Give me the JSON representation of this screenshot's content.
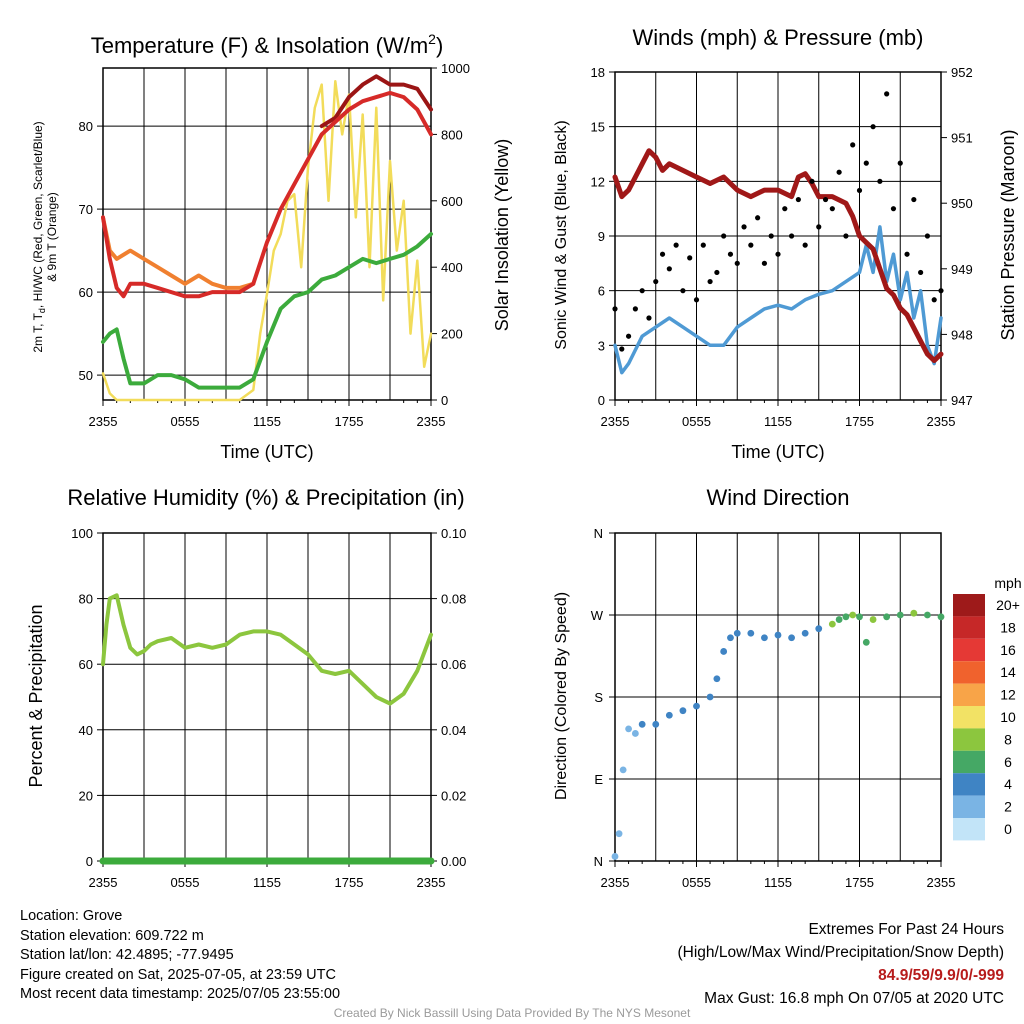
{
  "colors": {
    "temperature": "#d62a28",
    "dewpoint": "#3cab3c",
    "heatindex": "#9b1515",
    "temp_9m": "#f08030",
    "insolation": "#f2dc5a",
    "wind": "#4f9ad4",
    "gust": "#000000",
    "pressure": "#a01818",
    "humidity": "#8cc63e",
    "precip": "#3cab3c"
  },
  "charts": {
    "temperature": {
      "title_main": "Temperature (F) & Insolation (W/m",
      "title_sup": "2",
      "title_end": ")",
      "xlabel": "Time (UTC)",
      "ylabel_line1": "2m T, T",
      "ylabel_sub": "d",
      "ylabel_rest": ", HI/WC (Red, Green, Scarlet/Blue)",
      "ylabel_line2": "& 9m T (Orange)",
      "ylabel_right": "Solar Insolation (Yellow)"
    },
    "winds": {
      "title": "Winds (mph) & Pressure (mb)",
      "xlabel": "Time (UTC)",
      "ylabel_left": "Sonic Wind & Gust (Blue, Black)",
      "ylabel_right": "Station Pressure (Maroon)"
    },
    "humidity": {
      "title": "Relative Humidity (%) & Precipitation (in)",
      "ylabel_left": "Percent & Precipitation"
    },
    "direction": {
      "title": "Wind Direction",
      "ylabel_left": "Direction (Colored By Speed)",
      "legend_title": "mph"
    }
  },
  "chart_data": [
    {
      "id": "temperature",
      "type": "line",
      "x_ticks": [
        "2355",
        "0555",
        "1155",
        "1755",
        "2355"
      ],
      "xlim_hours": [
        0,
        24
      ],
      "ylim_left": [
        47,
        87
      ],
      "ylim_right": [
        0,
        1000
      ],
      "y_ticks_left": [
        50,
        60,
        70,
        80
      ],
      "y_ticks_right": [
        0,
        200,
        400,
        600,
        800,
        1000
      ],
      "series": [
        {
          "key": "temp_9m",
          "axis": "left",
          "x": [
            0,
            0.5,
            1,
            2,
            3,
            4,
            5,
            6,
            7,
            8,
            9,
            10,
            11
          ],
          "y": [
            69,
            65,
            64,
            65,
            64,
            63,
            62,
            61,
            62,
            61,
            60.5,
            60.5,
            61
          ]
        },
        {
          "key": "temperature",
          "axis": "left",
          "x": [
            0,
            0.5,
            1,
            1.5,
            2,
            3,
            4,
            5,
            6,
            7,
            8,
            9,
            10,
            11,
            12,
            13,
            14,
            15,
            16,
            17,
            18,
            19,
            20,
            21,
            22,
            23,
            24
          ],
          "y": [
            69,
            64,
            60.5,
            59.5,
            61,
            61,
            60.5,
            60,
            59.5,
            59.5,
            60,
            60,
            60,
            61,
            66,
            70,
            73,
            76,
            79,
            80.5,
            82,
            83,
            83.5,
            84,
            83.5,
            82,
            79
          ]
        },
        {
          "key": "heatindex",
          "axis": "left",
          "x": [
            16,
            17,
            18,
            19,
            20,
            21,
            22,
            23,
            24
          ],
          "y": [
            80,
            81,
            83.5,
            85,
            86,
            85,
            85,
            84.5,
            82
          ]
        },
        {
          "key": "dewpoint",
          "axis": "left",
          "x": [
            0,
            0.5,
            1,
            1.5,
            2,
            3,
            4,
            5,
            6,
            7,
            8,
            9,
            10,
            11,
            12,
            13,
            14,
            15,
            16,
            17,
            18,
            19,
            20,
            21,
            22,
            23,
            24
          ],
          "y": [
            54,
            55,
            55.5,
            52,
            49,
            49,
            50,
            50,
            49.5,
            48.5,
            48.5,
            48.5,
            48.5,
            49.5,
            54,
            58,
            59.5,
            60,
            61.5,
            62,
            63,
            64,
            63.5,
            64,
            64.5,
            65.5,
            67
          ]
        },
        {
          "key": "insolation",
          "axis": "right",
          "x": [
            0,
            0.5,
            1,
            2,
            4,
            6,
            8,
            9,
            10,
            11,
            11.5,
            12,
            12.5,
            13,
            13.5,
            14,
            14.5,
            15,
            15.5,
            16,
            16.5,
            17,
            17.5,
            18,
            18.5,
            19,
            19.5,
            20,
            20.5,
            21,
            21.5,
            22,
            22.5,
            23,
            23.5,
            24
          ],
          "y": [
            80,
            20,
            0,
            0,
            0,
            0,
            0,
            0,
            0,
            30,
            200,
            320,
            450,
            500,
            600,
            620,
            400,
            700,
            880,
            950,
            600,
            960,
            800,
            920,
            550,
            860,
            400,
            880,
            300,
            720,
            450,
            600,
            200,
            420,
            100,
            200
          ]
        }
      ]
    },
    {
      "id": "winds",
      "type": "line",
      "x_ticks": [
        "2355",
        "0555",
        "1155",
        "1755",
        "2355"
      ],
      "xlim_hours": [
        0,
        24
      ],
      "ylim_left": [
        0,
        18
      ],
      "ylim_right": [
        947,
        952
      ],
      "y_ticks_left": [
        0,
        3,
        6,
        9,
        12,
        15,
        18
      ],
      "y_ticks_right": [
        947,
        948,
        949,
        950,
        951,
        952
      ],
      "series": [
        {
          "key": "wind",
          "axis": "left",
          "x": [
            0,
            0.5,
            1,
            2,
            3,
            4,
            5,
            6,
            7,
            8,
            9,
            10,
            11,
            12,
            13,
            14,
            15,
            16,
            17,
            18,
            18.5,
            19,
            19.5,
            20,
            20.5,
            21,
            21.5,
            22,
            22.5,
            23,
            23.5,
            24
          ],
          "y": [
            3,
            1.5,
            2,
            3.5,
            4,
            4.5,
            4,
            3.5,
            3,
            3,
            4,
            4.5,
            5,
            5.2,
            5,
            5.5,
            5.8,
            6,
            6.5,
            7,
            8.5,
            7,
            9.5,
            6.5,
            8,
            5.5,
            7,
            4.5,
            6,
            3,
            2,
            4.5
          ]
        },
        {
          "key": "gust",
          "axis": "left",
          "x": [
            0,
            0.5,
            1,
            1.5,
            2,
            2.5,
            3,
            3.5,
            4,
            4.5,
            5,
            5.5,
            6,
            6.5,
            7,
            7.5,
            8,
            8.5,
            9,
            9.5,
            10,
            10.5,
            11,
            11.5,
            12,
            12.5,
            13,
            13.5,
            14,
            14.5,
            15,
            15.5,
            16,
            16.5,
            17,
            17.5,
            18,
            18.5,
            19,
            19.5,
            20,
            20.5,
            21,
            21.5,
            22,
            22.5,
            23,
            23.5,
            24
          ],
          "y": [
            5,
            2.8,
            3.5,
            5,
            6,
            4.5,
            6.5,
            8,
            7.2,
            8.5,
            6,
            7.8,
            5.5,
            8.5,
            6.5,
            7,
            9,
            8,
            7.5,
            9.5,
            8.5,
            10,
            7.5,
            9,
            8,
            10.5,
            9,
            11,
            8.5,
            12,
            9.5,
            11,
            10.5,
            12.5,
            9,
            14,
            11.5,
            13,
            15,
            12,
            16.8,
            10.5,
            13,
            8,
            11,
            7,
            9,
            5.5,
            6
          ]
        },
        {
          "key": "pressure",
          "axis": "right",
          "x": [
            0,
            0.5,
            1,
            1.5,
            2,
            2.5,
            3,
            3.5,
            4,
            5,
            6,
            7,
            8,
            9,
            10,
            11,
            12,
            13,
            13.5,
            14,
            14.5,
            15,
            16,
            17,
            17.5,
            18,
            18.5,
            19,
            19.5,
            20,
            20.5,
            21,
            21.5,
            22,
            22.5,
            23,
            23.5,
            24
          ],
          "y": [
            950.4,
            950.1,
            950.2,
            950.4,
            950.6,
            950.8,
            950.7,
            950.5,
            950.6,
            950.5,
            950.4,
            950.3,
            950.4,
            950.2,
            950.1,
            950.2,
            950.2,
            950.1,
            950.4,
            950.45,
            950.3,
            950.1,
            950.1,
            950.0,
            949.8,
            949.5,
            949.4,
            949.3,
            949.0,
            948.7,
            948.6,
            948.4,
            948.3,
            948.1,
            947.9,
            947.7,
            947.6,
            947.7
          ]
        }
      ]
    },
    {
      "id": "humidity",
      "type": "line",
      "x_ticks": [
        "2355",
        "0555",
        "1155",
        "1755",
        "2355"
      ],
      "xlim_hours": [
        0,
        24
      ],
      "ylim_left": [
        0,
        100
      ],
      "ylim_right": [
        0,
        0.1
      ],
      "y_ticks_left": [
        0,
        20,
        40,
        60,
        80,
        100
      ],
      "y_ticks_right": [
        "0.00",
        "0.02",
        "0.04",
        "0.06",
        "0.08",
        "0.10"
      ],
      "series": [
        {
          "key": "humidity",
          "axis": "left",
          "x": [
            0,
            0.25,
            0.5,
            1,
            1.5,
            2,
            2.5,
            3,
            3.5,
            4,
            5,
            6,
            7,
            8,
            9,
            10,
            11,
            12,
            13,
            14,
            15,
            16,
            17,
            18,
            19,
            20,
            21,
            22,
            23,
            24
          ],
          "y": [
            60,
            72,
            80,
            81,
            72,
            65,
            63,
            64,
            66,
            67,
            68,
            65,
            66,
            65,
            66,
            69,
            70,
            70,
            69,
            66,
            63,
            58,
            57,
            58,
            54,
            50,
            48,
            51,
            58,
            69
          ]
        },
        {
          "key": "precip",
          "axis": "right",
          "x": [
            0,
            24
          ],
          "y": [
            0,
            0
          ]
        }
      ]
    },
    {
      "id": "direction",
      "type": "scatter",
      "x_ticks": [
        "2355",
        "0555",
        "1155",
        "1755",
        "2355"
      ],
      "xlim_hours": [
        0,
        24
      ],
      "ylim_degrees": [
        0,
        360
      ],
      "y_ticks": [
        "N",
        "E",
        "S",
        "W",
        "N"
      ],
      "legend_labels": [
        "20+",
        "18",
        "16",
        "14",
        "12",
        "10",
        "8",
        "6",
        "4",
        "2",
        "0"
      ],
      "legend_colors": [
        "#9e1a1a",
        "#c62828",
        "#e53935",
        "#f0622d",
        "#f8a448",
        "#f2e265",
        "#8cc63e",
        "#45a865",
        "#3f84c4",
        "#7ab4e4",
        "#c2e4f8"
      ],
      "series": [
        {
          "name": "direction",
          "x": [
            0,
            0.3,
            0.6,
            1,
            1.5,
            2,
            3,
            4,
            5,
            6,
            7,
            7.5,
            8,
            8.5,
            9,
            10,
            11,
            12,
            13,
            14,
            15,
            16,
            16.5,
            17,
            17.5,
            18,
            18.5,
            19,
            20,
            21,
            22,
            23,
            24
          ],
          "y": [
            5,
            30,
            100,
            145,
            140,
            150,
            150,
            160,
            165,
            170,
            180,
            200,
            230,
            245,
            250,
            250,
            245,
            248,
            245,
            250,
            255,
            260,
            265,
            268,
            270,
            268,
            240,
            265,
            268,
            270,
            272,
            270,
            268
          ]
        }
      ]
    }
  ],
  "info": {
    "location": "Location: Grove",
    "elevation": "Station elevation: 609.722 m",
    "latlon": "Station lat/lon: 42.4895; -77.9495",
    "created": "Figure created on Sat, 2025-07-05, at 23:59 UTC",
    "recent": "Most recent data timestamp: 2025/07/05 23:55:00"
  },
  "extremes": {
    "title": "Extremes For Past 24 Hours",
    "subtitle": "(High/Low/Max Wind/Precipitation/Snow Depth)",
    "values": "84.9/59/9.9/0/-999",
    "max_gust": "Max Gust: 16.8 mph On 07/05 at 2020 UTC"
  },
  "credit": "Created By Nick Bassill Using Data Provided By The NYS Mesonet"
}
